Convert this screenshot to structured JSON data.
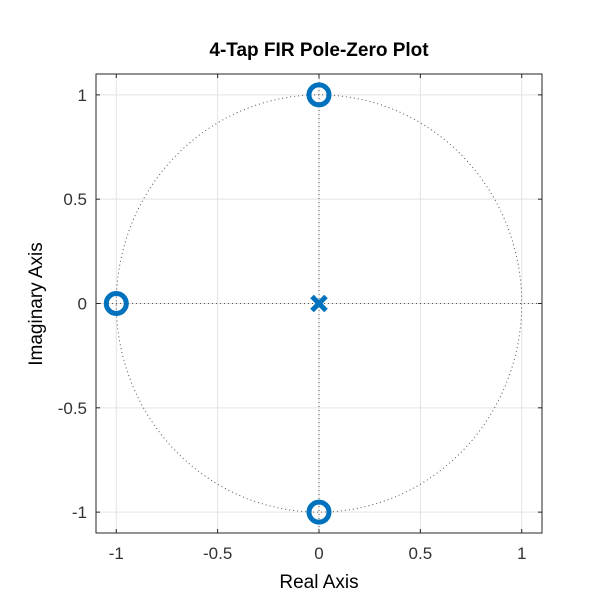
{
  "chart_data": {
    "type": "scatter",
    "title": "4-Tap FIR Pole-Zero Plot",
    "xlabel": "Real Axis",
    "ylabel": "Imaginary Axis",
    "xlim": [
      -1.1,
      1.1
    ],
    "ylim": [
      -1.1,
      1.1
    ],
    "xticks": [
      -1,
      -0.5,
      0,
      0.5,
      1
    ],
    "yticks": [
      -1,
      -0.5,
      0,
      0.5,
      1
    ],
    "xtick_labels": [
      "-1",
      "-0.5",
      "0",
      "0.5",
      "1"
    ],
    "ytick_labels": [
      "-1",
      "-0.5",
      "0",
      "0.5",
      "1"
    ],
    "grid": true,
    "unit_circle": true,
    "marker_color": "#0072BD",
    "zeros": [
      {
        "re": 0,
        "im": 1
      },
      {
        "re": -1,
        "im": 0
      },
      {
        "re": 0,
        "im": -1
      }
    ],
    "poles": [
      {
        "re": 0,
        "im": 0
      }
    ]
  }
}
